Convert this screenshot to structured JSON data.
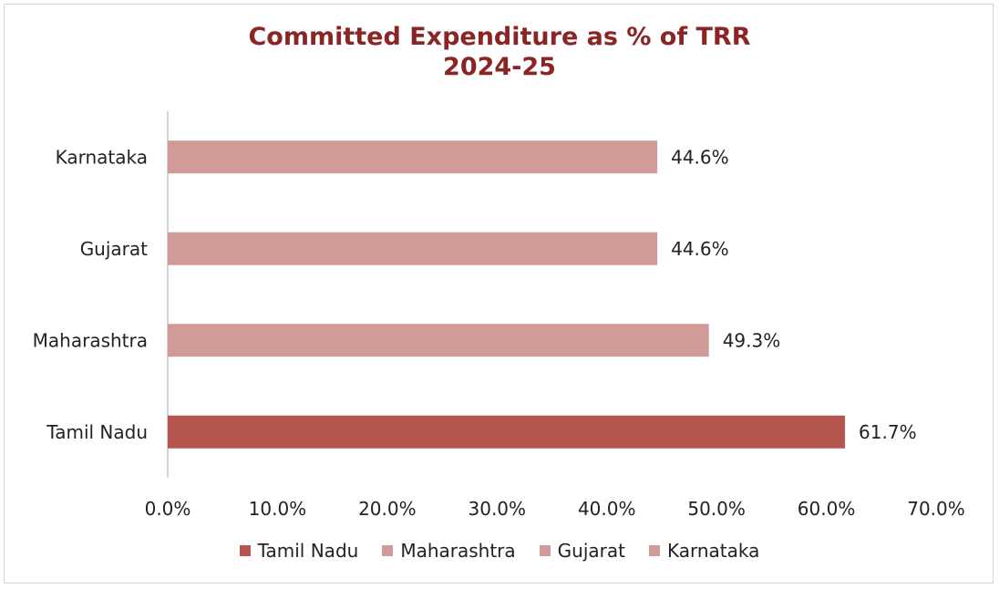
{
  "chart_data": {
    "type": "bar",
    "orientation": "horizontal",
    "title_lines": [
      "Committed Expenditure as % of TRR",
      "2024-25"
    ],
    "categories": [
      "Tamil Nadu",
      "Maharashtra",
      "Gujarat",
      "Karnataka"
    ],
    "values": [
      61.7,
      49.3,
      44.6,
      44.6
    ],
    "data_labels": [
      "61.7%",
      "49.3%",
      "44.6%",
      "44.6%"
    ],
    "colors": [
      "#b5564f",
      "#d09a97",
      "#d09a97",
      "#d09a97"
    ],
    "xlim": [
      0,
      70
    ],
    "x_ticks": [
      0,
      10,
      20,
      30,
      40,
      50,
      60,
      70
    ],
    "x_tick_labels": [
      "0.0%",
      "10.0%",
      "20.0%",
      "30.0%",
      "40.0%",
      "50.0%",
      "60.0%",
      "70.0%"
    ],
    "grid": false,
    "legend": {
      "position": "bottom",
      "entries": [
        {
          "name": "Tamil Nadu",
          "color": "#b5564f"
        },
        {
          "name": "Maharashtra",
          "color": "#d09a97"
        },
        {
          "name": "Gujarat",
          "color": "#d09a97"
        },
        {
          "name": "Karnataka",
          "color": "#d09a97"
        }
      ]
    }
  }
}
